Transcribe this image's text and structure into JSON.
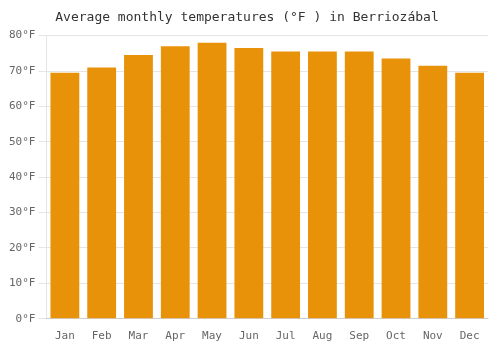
{
  "chart_data": {
    "type": "bar",
    "title": "Average monthly temperatures (°F ) in Berriozábal",
    "categories": [
      "Jan",
      "Feb",
      "Mar",
      "Apr",
      "May",
      "Jun",
      "Jul",
      "Aug",
      "Sep",
      "Oct",
      "Nov",
      "Dec"
    ],
    "values": [
      69.5,
      71.0,
      74.5,
      77.0,
      78.0,
      76.5,
      75.5,
      75.5,
      75.5,
      73.5,
      71.5,
      69.5
    ],
    "color": "#E8920A",
    "ylim": [
      0,
      80
    ],
    "yticks": [
      {
        "value": 0,
        "label": "0°F"
      },
      {
        "value": 10,
        "label": "10°F"
      },
      {
        "value": 20,
        "label": "20°F"
      },
      {
        "value": 30,
        "label": "30°F"
      },
      {
        "value": 40,
        "label": "40°F"
      },
      {
        "value": 50,
        "label": "50°F"
      },
      {
        "value": 60,
        "label": "60°F"
      },
      {
        "value": 70,
        "label": "70°F"
      },
      {
        "value": 80,
        "label": "80°F"
      }
    ],
    "grid": true
  }
}
